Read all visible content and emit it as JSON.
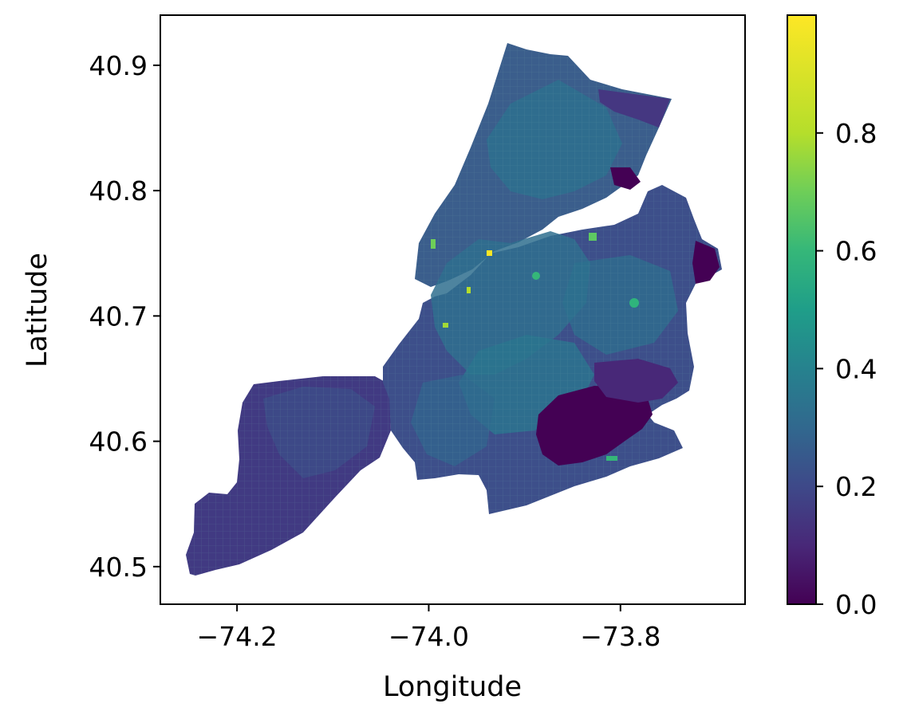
{
  "map": {
    "type": "choropleth",
    "region": "New York City census tracts (five boroughs)",
    "xlabel": "Longitude",
    "ylabel": "Latitude",
    "xlim": [
      -74.28,
      -73.67
    ],
    "ylim": [
      40.47,
      40.94
    ],
    "x_ticks": [
      -74.2,
      -74.0,
      -73.8
    ],
    "x_tick_labels": [
      "−74.2",
      "−74.0",
      "−73.8"
    ],
    "y_ticks": [
      40.5,
      40.6,
      40.7,
      40.8,
      40.9
    ],
    "y_tick_labels": [
      "40.5",
      "40.6",
      "40.7",
      "40.8",
      "40.9"
    ],
    "colormap": "viridis",
    "colorbar": {
      "range": [
        0.0,
        1.0
      ],
      "ticks": [
        0.0,
        0.2,
        0.4,
        0.6,
        0.8
      ],
      "tick_labels": [
        "0.0",
        "0.2",
        "0.4",
        "0.6",
        "0.8"
      ]
    },
    "colors": {
      "viridis_0": "#440154",
      "viridis_10": "#482878",
      "viridis_20": "#3e4989",
      "viridis_30": "#31688e",
      "viridis_40": "#26828e",
      "viridis_50": "#1f9e89",
      "viridis_60": "#35b779",
      "viridis_70": "#6ece58",
      "viridis_80": "#b5de2b",
      "viridis_100": "#fde725"
    }
  }
}
